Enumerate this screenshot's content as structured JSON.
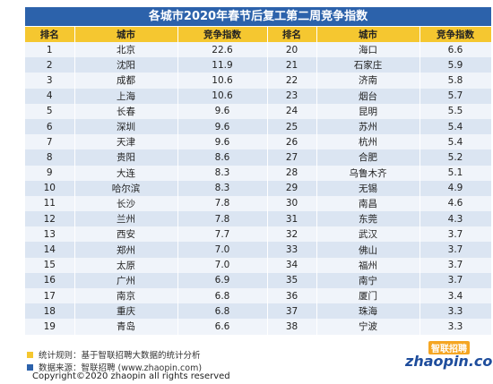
{
  "title": "各城市2020年春节后复工第二周竞争指数",
  "headers": [
    "排名",
    "城市",
    "竞争指数",
    "排名",
    "城市",
    "竞争指数"
  ],
  "rows": [
    {
      "rank_a": "1",
      "city_a": "北京",
      "index_a": "22.6",
      "rank_b": "20",
      "city_b": "海口",
      "index_b": "6.6"
    },
    {
      "rank_a": "2",
      "city_a": "沈阳",
      "index_a": "11.9",
      "rank_b": "21",
      "city_b": "石家庄",
      "index_b": "5.9"
    },
    {
      "rank_a": "3",
      "city_a": "成都",
      "index_a": "10.6",
      "rank_b": "22",
      "city_b": "济南",
      "index_b": "5.8"
    },
    {
      "rank_a": "4",
      "city_a": "上海",
      "index_a": "10.6",
      "rank_b": "23",
      "city_b": "烟台",
      "index_b": "5.7"
    },
    {
      "rank_a": "5",
      "city_a": "长春",
      "index_a": "9.6",
      "rank_b": "24",
      "city_b": "昆明",
      "index_b": "5.5"
    },
    {
      "rank_a": "6",
      "city_a": "深圳",
      "index_a": "9.6",
      "rank_b": "25",
      "city_b": "苏州",
      "index_b": "5.4"
    },
    {
      "rank_a": "7",
      "city_a": "天津",
      "index_a": "9.6",
      "rank_b": "26",
      "city_b": "杭州",
      "index_b": "5.4"
    },
    {
      "rank_a": "8",
      "city_a": "贵阳",
      "index_a": "8.6",
      "rank_b": "27",
      "city_b": "合肥",
      "index_b": "5.2"
    },
    {
      "rank_a": "9",
      "city_a": "大连",
      "index_a": "8.3",
      "rank_b": "28",
      "city_b": "乌鲁木齐",
      "index_b": "5.1"
    },
    {
      "rank_a": "10",
      "city_a": "哈尔滨",
      "index_a": "8.3",
      "rank_b": "29",
      "city_b": "无锡",
      "index_b": "4.9"
    },
    {
      "rank_a": "11",
      "city_a": "长沙",
      "index_a": "7.8",
      "rank_b": "30",
      "city_b": "南昌",
      "index_b": "4.6"
    },
    {
      "rank_a": "12",
      "city_a": "兰州",
      "index_a": "7.8",
      "rank_b": "31",
      "city_b": "东莞",
      "index_b": "4.3"
    },
    {
      "rank_a": "13",
      "city_a": "西安",
      "index_a": "7.7",
      "rank_b": "32",
      "city_b": "武汉",
      "index_b": "3.7"
    },
    {
      "rank_a": "14",
      "city_a": "郑州",
      "index_a": "7.0",
      "rank_b": "33",
      "city_b": "佛山",
      "index_b": "3.7"
    },
    {
      "rank_a": "15",
      "city_a": "太原",
      "index_a": "7.0",
      "rank_b": "34",
      "city_b": "福州",
      "index_b": "3.7"
    },
    {
      "rank_a": "16",
      "city_a": "广州",
      "index_a": "6.9",
      "rank_b": "35",
      "city_b": "南宁",
      "index_b": "3.7"
    },
    {
      "rank_a": "17",
      "city_a": "南京",
      "index_a": "6.8",
      "rank_b": "36",
      "city_b": "厦门",
      "index_b": "3.4"
    },
    {
      "rank_a": "18",
      "city_a": "重庆",
      "index_a": "6.8",
      "rank_b": "37",
      "city_b": "珠海",
      "index_b": "3.3"
    },
    {
      "rank_a": "19",
      "city_a": "青岛",
      "index_a": "6.6",
      "rank_b": "38",
      "city_b": "宁波",
      "index_b": "3.3"
    }
  ],
  "legend": {
    "rule": "统计规则：基于智联招聘大数据的统计分析",
    "source": "数据来源：智联招聘 (www.zhaopin.com)",
    "rule_color": "#f5c730",
    "source_color": "#2c62ab"
  },
  "logo": {
    "cn": "智联招聘",
    "en": "zhaopin.com"
  },
  "copyright": "Copyright©2020 zhaopin all rights reserved",
  "colors": {
    "title_bg": "#2c62ab",
    "header_bg": "#f5c730",
    "row_odd": "#f0f4fa",
    "row_even": "#dbe5f2"
  }
}
